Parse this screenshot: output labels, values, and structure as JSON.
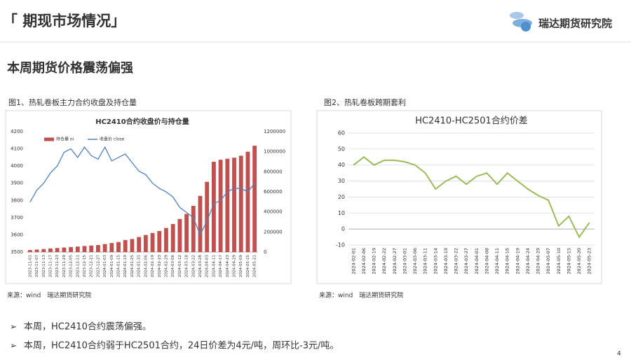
{
  "page": {
    "header": "「 期现市场情况」",
    "logo": "瑞达期货研究院",
    "subtitle": "本周期货价格震荡偏强",
    "captions": [
      "图1、热轧卷板主力合约收盘及持仓量",
      "图2、热轧卷板跨期套利"
    ],
    "sources": [
      "来源：wind　瑞达期货研究院",
      "来源：wind　瑞达期货研究院"
    ],
    "bullets": [
      "本周，HC2410合约震荡偏强。",
      "本周，HC2410合约弱于HC2501合约，24日价差为4元/吨，周环比-3元/吨。"
    ],
    "page_number": "4"
  },
  "chart_data": [
    {
      "type": "bar",
      "title": "HC2410合约收盘价与持仓量",
      "categories": [
        "2023-11-01",
        "2023-11-07",
        "2023-11-13",
        "2023-11-17",
        "2023-11-23",
        "2023-11-29",
        "2023-12-05",
        "2023-12-11",
        "2023-12-15",
        "2023-12-21",
        "2023-12-27",
        "2024-01-03",
        "2024-01-09",
        "2024-01-15",
        "2024-01-19",
        "2024-01-25",
        "2024-01-31",
        "2024-02-06",
        "2024-02-19",
        "2024-02-23",
        "2024-02-29",
        "2024-03-06",
        "2024-03-12",
        "2024-03-18",
        "2024-03-22",
        "2024-03-28",
        "2024-04-03",
        "2024-04-11",
        "2024-04-17",
        "2024-04-23",
        "2024-04-29",
        "2024-05-09",
        "2024-05-15",
        "2024-05-21"
      ],
      "series": [
        {
          "name": "持仓量 oi",
          "color": "#c0504d",
          "axis": "y2",
          "values": [
            20000,
            25000,
            30000,
            35000,
            40000,
            45000,
            50000,
            55000,
            60000,
            65000,
            70000,
            80000,
            90000,
            100000,
            120000,
            130000,
            150000,
            170000,
            190000,
            210000,
            240000,
            280000,
            330000,
            380000,
            460000,
            560000,
            700000,
            900000,
            920000,
            930000,
            940000,
            960000,
            1000000,
            1060000
          ]
        },
        {
          "name": "收盘价 close",
          "color": "#4f81bd",
          "type": "line",
          "axis": "y",
          "values": [
            3790,
            3860,
            3900,
            3960,
            4000,
            4080,
            4100,
            4050,
            4110,
            4060,
            4040,
            4110,
            4030,
            4050,
            4070,
            4020,
            3970,
            3950,
            3900,
            3870,
            3850,
            3820,
            3760,
            3730,
            3700,
            3600,
            3680,
            3780,
            3800,
            3850,
            3870,
            3870,
            3850,
            3900
          ]
        }
      ],
      "ylim": [
        3500,
        4200
      ],
      "yticks": [
        3500,
        3600,
        3700,
        3800,
        3900,
        4000,
        4100,
        4200
      ],
      "y2lim": [
        0,
        1200000
      ],
      "y2ticks": [
        0,
        200000,
        400000,
        600000,
        800000,
        1000000,
        1200000
      ],
      "grid": false,
      "legend": "top-left"
    },
    {
      "type": "line",
      "title": "HC2410-HC2501合约价差",
      "categories": [
        "2024-02-01",
        "2024-02-06",
        "2024-02-19",
        "2024-02-22",
        "2024-02-27",
        "2024-03-01",
        "2024-03-06",
        "2024-03-11",
        "2024-03-14",
        "2024-03-19",
        "2024-03-22",
        "2024-03-27",
        "2024-04-01",
        "2024-04-08",
        "2024-04-11",
        "2024-04-16",
        "2024-04-19",
        "2024-04-24",
        "2024-04-29",
        "2024-05-07",
        "2024-05-10",
        "2024-05-15",
        "2024-05-20",
        "2024-05-23"
      ],
      "color": "#9bbb59",
      "values": [
        40,
        45,
        40,
        43,
        43,
        42,
        40,
        35,
        25,
        30,
        33,
        28,
        33,
        35,
        28,
        35,
        30,
        25,
        21,
        18,
        2,
        8,
        -5,
        4
      ],
      "ylim": [
        -10,
        60
      ],
      "yticks": [
        -10,
        0,
        10,
        20,
        30,
        40,
        50,
        60
      ],
      "grid": true
    }
  ]
}
